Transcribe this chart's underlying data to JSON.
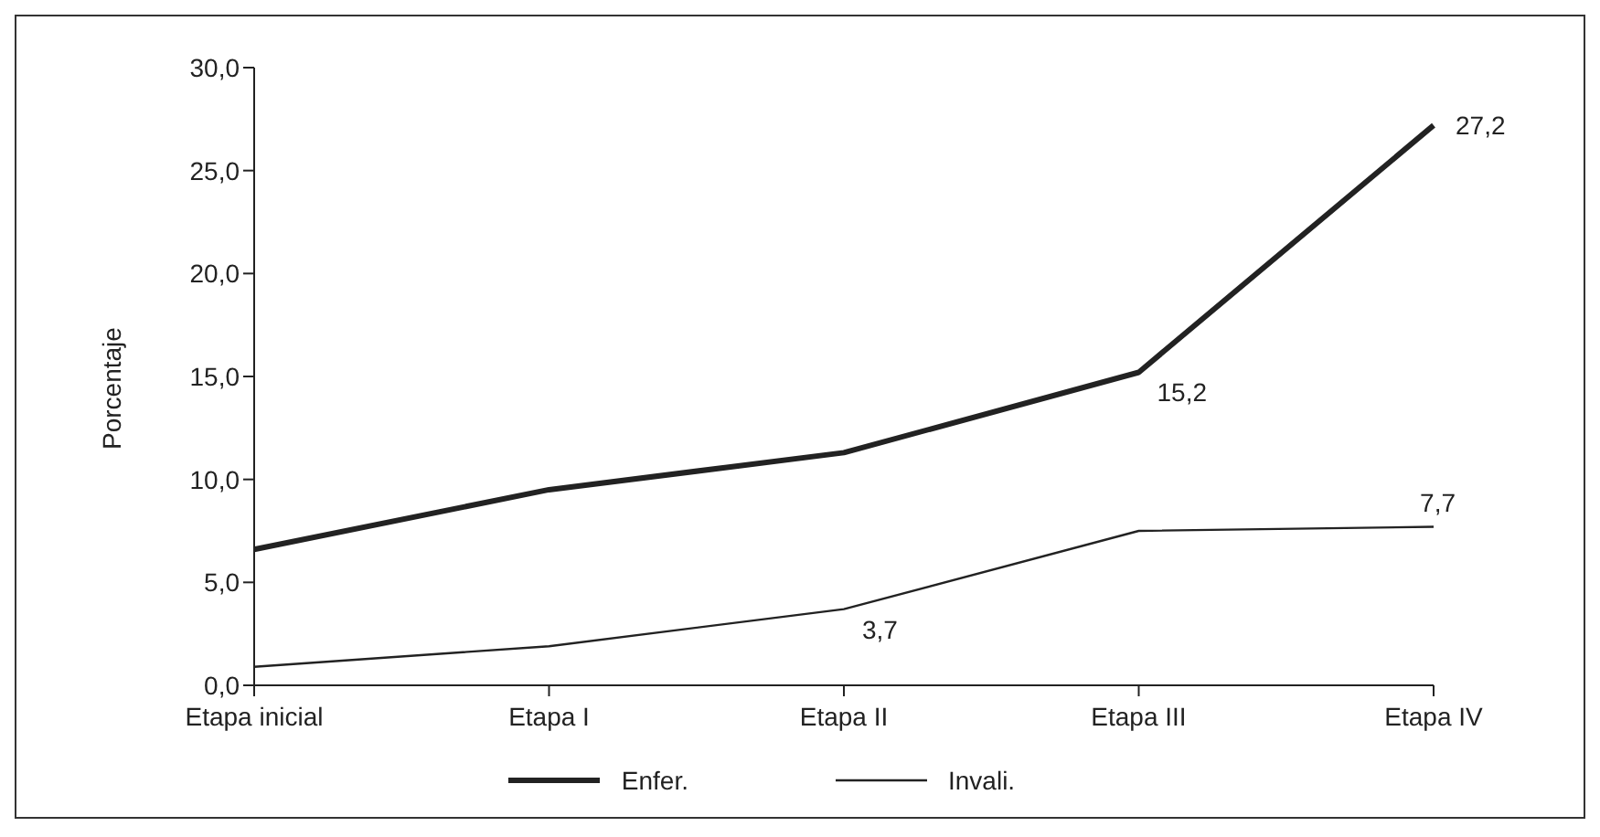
{
  "chart_data": {
    "type": "line",
    "ylabel": "Porcentaje",
    "categories": [
      "Etapa inicial",
      "Etapa I",
      "Etapa II",
      "Etapa III",
      "Etapa IV"
    ],
    "series": [
      {
        "name": "Enfer.",
        "color": "#222222",
        "values": [
          6.6,
          9.5,
          11.3,
          15.2,
          27.2
        ],
        "value_labels": [
          null,
          null,
          null,
          "15,2",
          "27,2"
        ]
      },
      {
        "name": "Invali.",
        "color": "#222222",
        "values": [
          0.9,
          1.9,
          3.7,
          7.5,
          7.7
        ],
        "value_labels": [
          null,
          null,
          "3,7",
          null,
          "7,7"
        ]
      }
    ],
    "ylim": [
      0,
      30
    ],
    "yticks": [
      {
        "value": 0,
        "label": "0,0"
      },
      {
        "value": 5,
        "label": "5,0"
      },
      {
        "value": 10,
        "label": "10,0"
      },
      {
        "value": 15,
        "label": "15,0"
      },
      {
        "value": 20,
        "label": "20,0"
      },
      {
        "value": 25,
        "label": "25,0"
      },
      {
        "value": 30,
        "label": "30,0"
      }
    ],
    "grid": false,
    "legend": "bottom",
    "marker": "none",
    "line_style": "solid"
  }
}
